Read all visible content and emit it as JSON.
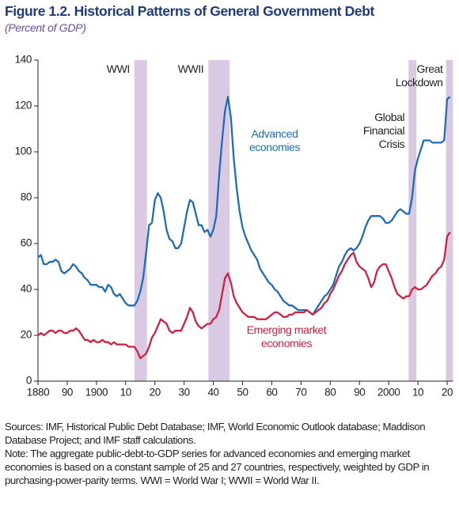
{
  "chart_data": {
    "type": "line",
    "title": "Figure 1.2. Historical Patterns of General Government Debt",
    "subtitle": "(Percent of GDP)",
    "x": [
      1880,
      1881,
      1882,
      1883,
      1884,
      1885,
      1886,
      1887,
      1888,
      1889,
      1890,
      1891,
      1892,
      1893,
      1894,
      1895,
      1896,
      1897,
      1898,
      1899,
      1900,
      1901,
      1902,
      1903,
      1904,
      1905,
      1906,
      1907,
      1908,
      1909,
      1910,
      1911,
      1912,
      1913,
      1914,
      1915,
      1916,
      1917,
      1918,
      1919,
      1920,
      1921,
      1922,
      1923,
      1924,
      1925,
      1926,
      1927,
      1928,
      1929,
      1930,
      1931,
      1932,
      1933,
      1934,
      1935,
      1936,
      1937,
      1938,
      1939,
      1940,
      1941,
      1942,
      1943,
      1944,
      1945,
      1946,
      1947,
      1948,
      1949,
      1950,
      1951,
      1952,
      1953,
      1954,
      1955,
      1956,
      1957,
      1958,
      1959,
      1960,
      1961,
      1962,
      1963,
      1964,
      1965,
      1966,
      1967,
      1968,
      1969,
      1970,
      1971,
      1972,
      1973,
      1974,
      1975,
      1976,
      1977,
      1978,
      1979,
      1980,
      1981,
      1982,
      1983,
      1984,
      1985,
      1986,
      1987,
      1988,
      1989,
      1990,
      1991,
      1992,
      1993,
      1994,
      1995,
      1996,
      1997,
      1998,
      1999,
      2000,
      2001,
      2002,
      2003,
      2004,
      2005,
      2006,
      2007,
      2008,
      2009,
      2010,
      2011,
      2012,
      2013,
      2014,
      2015,
      2016,
      2017,
      2018,
      2019,
      2020,
      2021
    ],
    "series": [
      {
        "name": "Advanced economies",
        "color": "#1f6db5",
        "values": [
          54,
          55,
          51,
          51,
          52,
          52,
          53,
          52,
          48,
          47,
          48,
          49,
          51,
          50,
          48,
          47,
          45,
          44,
          42,
          42,
          42,
          41,
          41,
          39,
          42,
          41,
          38,
          37,
          38,
          36,
          34,
          33,
          33,
          33,
          35,
          39,
          45,
          56,
          68,
          69,
          79,
          82,
          80,
          74,
          66,
          62,
          61,
          58,
          58,
          60,
          67,
          74,
          79,
          78,
          73,
          68,
          68,
          65,
          66,
          63,
          66,
          72,
          90,
          105,
          118,
          124,
          115,
          97,
          84,
          74,
          67,
          63,
          60,
          57,
          55,
          53,
          49,
          47,
          45,
          43,
          42,
          40,
          39,
          37,
          35,
          34,
          33,
          33,
          32,
          31,
          31,
          31,
          31,
          30,
          29,
          31,
          33,
          35,
          37,
          38,
          40,
          42,
          46,
          50,
          52,
          55,
          57,
          58,
          57,
          58,
          60,
          63,
          67,
          70,
          72,
          72,
          72,
          72,
          71,
          69,
          69,
          70,
          72,
          74,
          75,
          74,
          73,
          73,
          80,
          92,
          97,
          101,
          105,
          105,
          105,
          104,
          104,
          104,
          104,
          105,
          123,
          124
        ]
      },
      {
        "name": "Emerging market economies",
        "color": "#cf2140",
        "values": [
          20,
          21,
          20,
          21,
          22,
          22,
          21,
          22,
          22,
          21,
          21,
          22,
          22,
          23,
          22,
          20,
          18,
          18,
          17,
          18,
          17,
          17,
          18,
          17,
          17,
          16,
          17,
          16,
          16,
          16,
          16,
          15,
          15,
          15,
          13,
          10,
          11,
          12,
          15,
          19,
          21,
          24,
          27,
          26,
          25,
          22,
          21,
          22,
          22,
          22,
          25,
          28,
          32,
          30,
          26,
          24,
          23,
          24,
          25,
          25,
          27,
          28,
          31,
          38,
          45,
          47,
          43,
          37,
          34,
          32,
          30,
          29,
          28,
          28,
          28,
          27,
          27,
          27,
          27,
          28,
          29,
          30,
          30,
          29,
          28,
          28,
          29,
          29,
          30,
          30,
          30,
          30,
          31,
          30,
          29,
          30,
          31,
          32,
          34,
          35,
          38,
          40,
          43,
          46,
          48,
          51,
          53,
          55,
          56,
          52,
          50,
          49,
          48,
          45,
          41,
          43,
          48,
          50,
          51,
          51,
          48,
          45,
          41,
          38,
          37,
          36,
          37,
          37,
          40,
          41,
          40,
          40,
          41,
          42,
          44,
          46,
          47,
          49,
          50,
          53,
          63,
          65
        ]
      }
    ],
    "xlim": [
      1880,
      2022
    ],
    "xticks": [
      1880,
      {
        "value": 1890,
        "label": "90"
      },
      1900,
      {
        "value": 1910,
        "label": "10"
      },
      {
        "value": 1920,
        "label": "20"
      },
      {
        "value": 1930,
        "label": "30"
      },
      {
        "value": 1940,
        "label": "40"
      },
      {
        "value": 1950,
        "label": "50"
      },
      {
        "value": 1960,
        "label": "60"
      },
      {
        "value": 1970,
        "label": "70"
      },
      {
        "value": 1980,
        "label": "80"
      },
      {
        "value": 1990,
        "label": "90"
      },
      2000,
      {
        "value": 2010,
        "label": "10"
      },
      {
        "value": 2020,
        "label": "20"
      }
    ],
    "ylim": [
      0,
      140
    ],
    "yticks": [
      0,
      20,
      40,
      60,
      80,
      100,
      120,
      140
    ],
    "grid": false,
    "shaded_periods": [
      {
        "label": "WWI",
        "start": 1913,
        "end": 1917.3
      },
      {
        "label": "WWII",
        "start": 1938.3,
        "end": 1945.6
      },
      {
        "label": "Global Financial Crisis",
        "start": 2006.8,
        "end": 2009.5
      },
      {
        "label": "Great Lockdown",
        "start": 2019.6,
        "end": 2022
      }
    ],
    "shade_color": "#d9c9e3",
    "notes": [
      "Sources: IMF, Historical Public Debt Database; IMF, World Economic Outlook database; Maddison Database Project; and IMF staff calculations.",
      "Note: The aggregate public-debt-to-GDP series for advanced economies and emerging market economies is based on a constant sample of 25 and 27 countries, respectively, weighted by GDP in purchasing-power-parity terms. WWI = World War I; WWII = World War II."
    ]
  }
}
